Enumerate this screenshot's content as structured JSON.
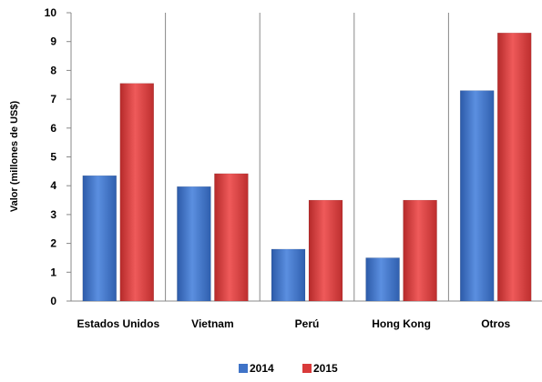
{
  "chart_data": {
    "type": "bar",
    "title": "",
    "xlabel": "",
    "ylabel": "Valor (millones de US$)",
    "ylim": [
      0,
      10
    ],
    "yticks": [
      0,
      1,
      2,
      3,
      4,
      5,
      6,
      7,
      8,
      9,
      10
    ],
    "categories": [
      "Estados Unidos",
      "Vietnam",
      "Perú",
      "Hong Kong",
      "Otros"
    ],
    "series": [
      {
        "name": "2014",
        "values": [
          4.35,
          3.97,
          1.8,
          1.5,
          7.3
        ],
        "color": "#3f73c7"
      },
      {
        "name": "2015",
        "values": [
          7.55,
          4.42,
          3.5,
          3.5,
          9.3
        ],
        "color": "#d93a3a"
      }
    ],
    "legend_position": "bottom-center",
    "category_separators": true
  }
}
